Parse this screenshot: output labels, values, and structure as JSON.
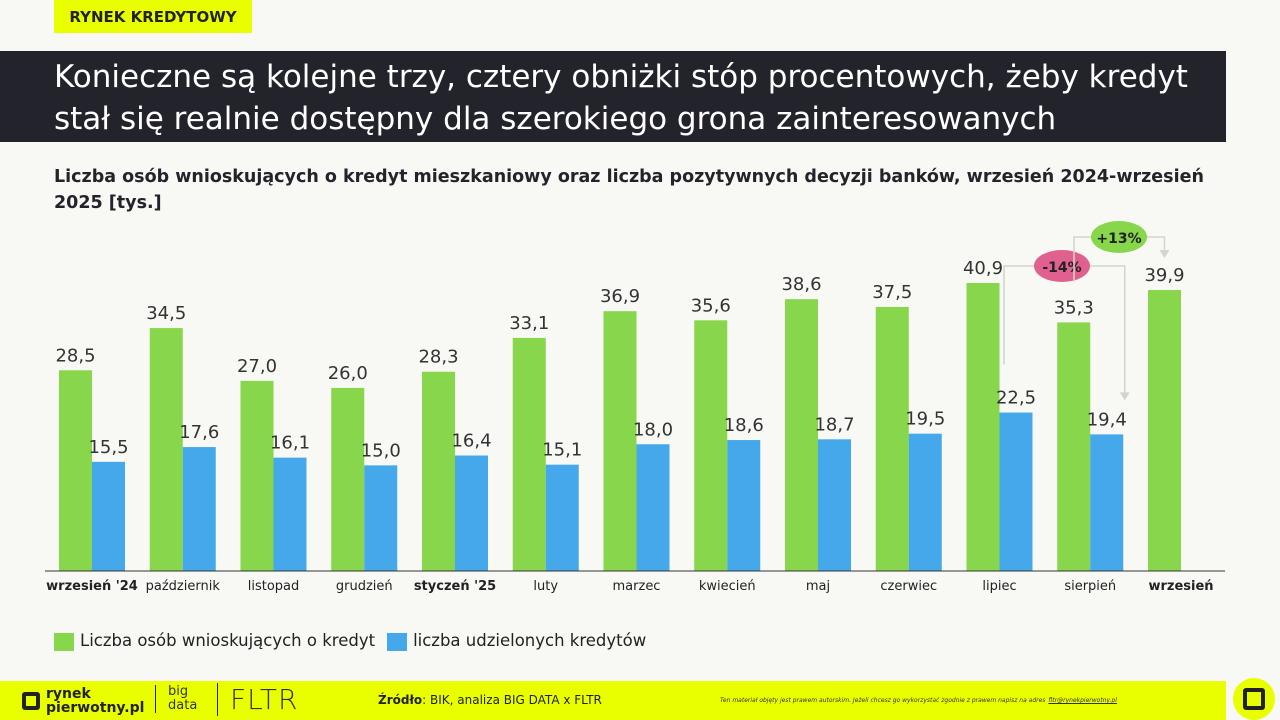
{
  "tag": "RYNEK KREDYTOWY",
  "headline": "Konieczne są kolejne trzy, cztery obniżki stóp procentowych, żeby kredyt stał się realnie dostępny dla szerokiego grona zainteresowanych",
  "chart_data": {
    "type": "bar",
    "title": "Liczba osób wnioskujących o kredyt mieszkaniowy oraz liczba pozytywnych decyzji banków, wrzesień 2024-wrzesień 2025 [tys.]",
    "categories": [
      "wrzesień '24",
      "październik",
      "listopad",
      "grudzień",
      "styczeń '25",
      "luty",
      "marzec",
      "kwiecień",
      "maj",
      "czerwiec",
      "lipiec",
      "sierpień",
      "wrzesień"
    ],
    "bold_categories": [
      "wrzesień '24",
      "styczeń '25",
      "wrzesień"
    ],
    "series": [
      {
        "name": "Liczba osób wnioskujących o kredyt",
        "color": "#88d64b",
        "values": [
          28.5,
          34.5,
          27.0,
          26.0,
          28.3,
          33.1,
          36.9,
          35.6,
          38.6,
          37.5,
          40.9,
          35.3,
          39.9
        ]
      },
      {
        "name": "liczba udzielonych kredytów",
        "color": "#45a8ea",
        "values": [
          15.5,
          17.6,
          16.1,
          15.0,
          16.4,
          15.1,
          18.0,
          18.6,
          18.7,
          19.5,
          22.5,
          19.4,
          null
        ]
      }
    ],
    "annotations": [
      {
        "text": "-14%",
        "color": "#e0608f",
        "from": "lipiec (liczba udzielonych kredytów)",
        "to": "sierpień (liczba udzielonych kredytów)"
      },
      {
        "text": "+13%",
        "color": "#88d64b",
        "from": "sierpień (Liczba osób wnioskujących o kredyt)",
        "to": "wrzesień (Liczba osób wnioskujących o kredyt)"
      }
    ],
    "ylim": [
      0,
      41
    ],
    "grid": false,
    "legend": "bottom-left"
  },
  "footer": {
    "logo": "rynek pierwotny.pl",
    "bigdata": "big data",
    "fltr": "FLTR",
    "source_label": "Źródło",
    "source": ": BIK, analiza BIG DATA x FLTR",
    "copyright": "Ten materiał objęty jest prawem autorskim. Jeżeli chcesz go wykorzystać zgodnie z prawem napisz na adres",
    "email": "fltr@rynekpierwotny.pl"
  }
}
